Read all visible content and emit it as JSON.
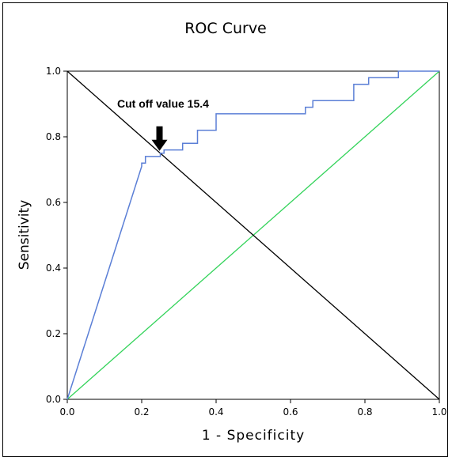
{
  "chart_data": {
    "type": "line",
    "title": "ROC Curve",
    "xlabel": "1 - Specificity",
    "ylabel": "Sensitivity",
    "xlim": [
      0.0,
      1.0
    ],
    "ylim": [
      0.0,
      1.0
    ],
    "xticks": [
      "0.0",
      "0.2",
      "0.4",
      "0.6",
      "0.8",
      "1.0"
    ],
    "yticks": [
      "0.0",
      "0.2",
      "0.4",
      "0.6",
      "0.8",
      "1.0"
    ],
    "grid": false,
    "legend": "none",
    "series": [
      {
        "color": "#5b7fd6",
        "x": [
          0.0,
          0.2,
          0.2,
          0.21,
          0.21,
          0.25,
          0.25,
          0.26,
          0.26,
          0.31,
          0.31,
          0.35,
          0.35,
          0.4,
          0.4,
          0.64,
          0.64,
          0.66,
          0.66,
          0.77,
          0.77,
          0.81,
          0.81,
          0.89,
          0.89,
          1.0
        ],
        "y": [
          0.0,
          0.71,
          0.72,
          0.72,
          0.74,
          0.74,
          0.75,
          0.75,
          0.76,
          0.76,
          0.78,
          0.78,
          0.82,
          0.82,
          0.87,
          0.87,
          0.89,
          0.89,
          0.91,
          0.91,
          0.96,
          0.96,
          0.98,
          0.98,
          1.0,
          1.0
        ]
      },
      {
        "color": "#33d35a",
        "x": [
          0.0,
          1.0
        ],
        "y": [
          0.0,
          1.0
        ]
      },
      {
        "color": "#000000",
        "x": [
          0.0,
          1.0
        ],
        "y": [
          1.0,
          0.0
        ]
      }
    ],
    "annotations": [
      {
        "text": "Cut off value 15.4",
        "x": 0.25,
        "y": 0.75
      }
    ]
  }
}
